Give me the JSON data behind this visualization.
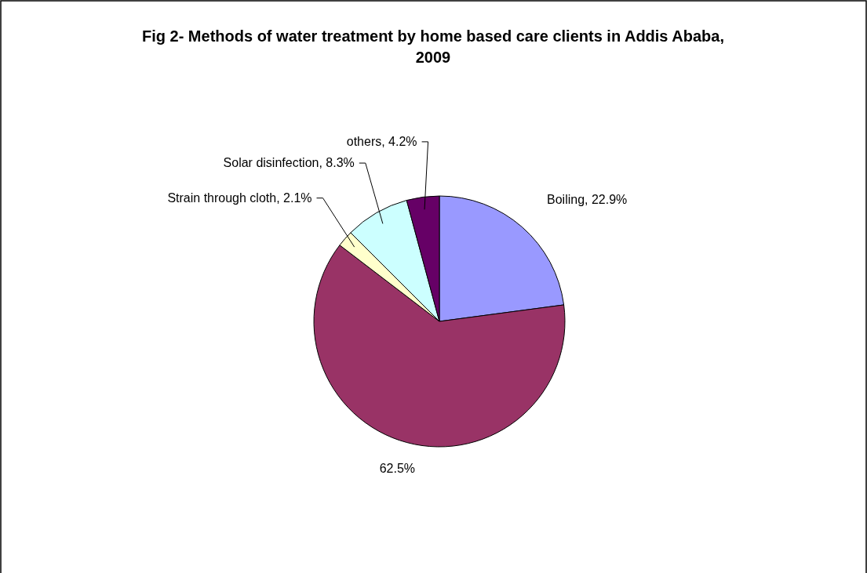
{
  "chart_data": {
    "type": "pie",
    "title": "Fig 2- Methods of water treatment by home based care clients in Addis Ababa, 2009",
    "categories": [
      "Boiling",
      null,
      "Strain through cloth",
      "Solar disinfection",
      "others"
    ],
    "values": [
      22.9,
      62.5,
      2.1,
      8.3,
      4.2
    ],
    "value_labels": [
      "22.9%",
      "62.5%",
      "2.1%",
      "8.3%",
      "4.2%"
    ],
    "colors": [
      "#9999ff",
      "#993366",
      "#ffffcc",
      "#ccffff",
      "#660066"
    ],
    "legend": false
  }
}
